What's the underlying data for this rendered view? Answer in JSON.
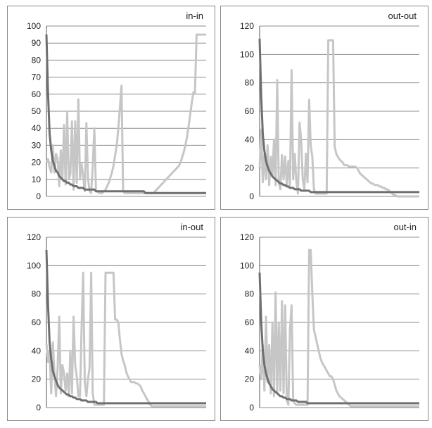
{
  "colors": {
    "dark_series": "#6f6f6f",
    "light_series": "#c6c6c6",
    "grid": "#8c8c8c",
    "axis": "#555555"
  },
  "chart_data": [
    {
      "type": "line",
      "title": "in-in",
      "ylim": [
        0,
        100
      ],
      "yticks": [
        "0",
        "10",
        "20",
        "30",
        "40",
        "50",
        "60",
        "70",
        "80",
        "90",
        "100"
      ],
      "grid": true,
      "x": [
        0,
        1,
        2,
        3,
        4,
        5,
        6,
        7,
        8,
        9,
        10,
        11,
        12,
        13,
        14,
        15,
        16,
        17,
        18,
        19,
        20,
        21,
        22,
        23,
        24,
        25,
        26,
        27,
        28,
        29,
        30,
        31,
        32,
        33,
        34,
        35,
        36,
        37,
        38,
        39,
        40,
        41,
        42,
        43,
        44,
        45,
        46,
        47,
        48,
        49,
        50,
        51,
        52,
        53,
        54,
        55,
        56,
        57,
        58,
        59,
        60,
        61,
        62,
        63,
        64,
        65,
        66,
        67,
        68,
        69,
        70,
        71,
        72,
        73,
        74,
        75,
        76,
        77,
        78,
        79,
        80,
        81,
        82,
        83,
        84,
        85,
        86,
        87,
        88,
        89,
        90,
        91,
        92,
        93,
        94,
        95,
        96,
        97,
        98,
        99,
        100
      ],
      "series": [
        {
          "values": [
            95,
            60,
            37,
            27,
            21,
            18,
            15,
            14,
            12,
            11,
            10,
            9,
            9,
            8,
            8,
            7,
            7,
            6,
            6,
            6,
            5,
            5,
            5,
            5,
            4,
            4,
            4,
            4,
            4,
            4,
            4,
            3,
            3,
            3,
            3,
            3,
            3,
            3,
            3,
            3,
            3,
            3,
            3,
            3,
            3,
            3,
            3,
            3,
            3,
            3,
            3,
            3,
            3,
            3,
            3,
            3,
            3,
            3,
            3,
            3,
            3,
            3,
            2,
            2,
            2,
            2,
            2,
            2,
            2,
            2,
            2,
            2,
            2,
            2,
            2,
            2,
            2,
            2,
            2,
            2,
            2,
            2,
            2,
            2,
            2,
            2,
            2,
            2,
            2,
            2,
            2,
            2,
            2,
            2,
            2,
            2,
            2,
            2,
            2,
            2,
            2
          ]
        },
        {
          "values": [
            20,
            22,
            17,
            14,
            30,
            14,
            25,
            22,
            6,
            27,
            10,
            42,
            7,
            49,
            10,
            13,
            44,
            4,
            44,
            8,
            57,
            10,
            19,
            12,
            3,
            43,
            11,
            3,
            2,
            18,
            40,
            3,
            3,
            2,
            2,
            2,
            3,
            4,
            6,
            8,
            11,
            14,
            18,
            24,
            30,
            40,
            52,
            65,
            3,
            2,
            2,
            2,
            2,
            2,
            2,
            2,
            2,
            2,
            2,
            2,
            2,
            2,
            2,
            2,
            2,
            2,
            2,
            2,
            3,
            4,
            5,
            6,
            7,
            8,
            9,
            10,
            11,
            12,
            13,
            14,
            15,
            16,
            17,
            18,
            20,
            23,
            26,
            30,
            35,
            41,
            48,
            55,
            61,
            61,
            95,
            95,
            95,
            95,
            95,
            95,
            95
          ]
        }
      ]
    },
    {
      "type": "line",
      "title": "out-out",
      "ylim": [
        0,
        120
      ],
      "yticks": [
        "0",
        "20",
        "40",
        "60",
        "80",
        "100",
        "120"
      ],
      "grid": true,
      "x": [
        0,
        1,
        2,
        3,
        4,
        5,
        6,
        7,
        8,
        9,
        10,
        11,
        12,
        13,
        14,
        15,
        16,
        17,
        18,
        19,
        20,
        21,
        22,
        23,
        24,
        25,
        26,
        27,
        28,
        29,
        30,
        31,
        32,
        33,
        34,
        35,
        36,
        37,
        38,
        39,
        40,
        41,
        42,
        43,
        44,
        45,
        46,
        47,
        48,
        49,
        50,
        51,
        52,
        53,
        54,
        55,
        56,
        57,
        58,
        59,
        60,
        61,
        62,
        63,
        64,
        65,
        66,
        67,
        68,
        69,
        70,
        71,
        72,
        73,
        74,
        75,
        76,
        77,
        78,
        79,
        80,
        81,
        82,
        83,
        84,
        85,
        86,
        87,
        88,
        89,
        90,
        91,
        92,
        93,
        94,
        95,
        96,
        97,
        98,
        99,
        100
      ],
      "series": [
        {
          "values": [
            111,
            70,
            44,
            32,
            25,
            21,
            18,
            16,
            14,
            13,
            12,
            11,
            10,
            9,
            9,
            8,
            8,
            7,
            7,
            6,
            6,
            6,
            5,
            5,
            5,
            5,
            4,
            4,
            4,
            4,
            4,
            4,
            3,
            3,
            3,
            3,
            3,
            3,
            3,
            3,
            3,
            3,
            3,
            3,
            3,
            3,
            3,
            3,
            3,
            3,
            3,
            3,
            3,
            3,
            3,
            3,
            3,
            3,
            3,
            3,
            3,
            3,
            3,
            3,
            3,
            3,
            3,
            3,
            3,
            3,
            3,
            3,
            3,
            3,
            3,
            3,
            3,
            3,
            3,
            3,
            3,
            3,
            3,
            3,
            3,
            3,
            3,
            3,
            3,
            3,
            3,
            3,
            3,
            3,
            3,
            3,
            3,
            3,
            3,
            3,
            3
          ]
        },
        {
          "values": [
            20,
            47,
            10,
            30,
            12,
            36,
            8,
            28,
            14,
            40,
            8,
            82,
            10,
            5,
            29,
            12,
            28,
            8,
            25,
            8,
            89,
            12,
            30,
            10,
            2,
            52,
            40,
            12,
            5,
            30,
            10,
            68,
            36,
            28,
            5,
            2,
            2,
            2,
            2,
            2,
            2,
            2,
            2,
            110,
            110,
            110,
            110,
            35,
            30,
            28,
            26,
            25,
            24,
            22,
            22,
            22,
            21,
            21,
            21,
            21,
            21,
            20,
            18,
            16,
            15,
            14,
            13,
            12,
            11,
            10,
            9,
            9,
            8,
            8,
            8,
            7,
            7,
            6,
            6,
            5,
            5,
            4,
            3,
            2,
            1,
            1,
            0,
            0,
            0,
            0,
            0,
            0,
            0,
            0,
            0,
            0,
            0,
            0,
            0,
            0,
            0
          ]
        }
      ]
    },
    {
      "type": "line",
      "title": "in-out",
      "ylim": [
        0,
        120
      ],
      "yticks": [
        "0",
        "20",
        "40",
        "60",
        "80",
        "100",
        "120"
      ],
      "grid": true,
      "x": [
        0,
        1,
        2,
        3,
        4,
        5,
        6,
        7,
        8,
        9,
        10,
        11,
        12,
        13,
        14,
        15,
        16,
        17,
        18,
        19,
        20,
        21,
        22,
        23,
        24,
        25,
        26,
        27,
        28,
        29,
        30,
        31,
        32,
        33,
        34,
        35,
        36,
        37,
        38,
        39,
        40,
        41,
        42,
        43,
        44,
        45,
        46,
        47,
        48,
        49,
        50,
        51,
        52,
        53,
        54,
        55,
        56,
        57,
        58,
        59,
        60,
        61,
        62,
        63,
        64,
        65,
        66,
        67,
        68,
        69,
        70,
        71,
        72,
        73,
        74,
        75,
        76,
        77,
        78,
        79,
        80,
        81,
        82,
        83,
        84,
        85,
        86,
        87,
        88,
        89,
        90,
        91,
        92,
        93,
        94,
        95,
        96,
        97,
        98,
        99,
        100
      ],
      "series": [
        {
          "values": [
            111,
            72,
            46,
            34,
            26,
            22,
            19,
            16,
            14,
            13,
            12,
            11,
            10,
            9,
            9,
            8,
            8,
            7,
            7,
            6,
            6,
            6,
            5,
            5,
            5,
            5,
            4,
            4,
            4,
            4,
            4,
            4,
            3,
            3,
            3,
            3,
            3,
            3,
            3,
            3,
            3,
            3,
            3,
            3,
            3,
            3,
            3,
            3,
            3,
            3,
            3,
            3,
            3,
            3,
            3,
            3,
            3,
            3,
            3,
            3,
            3,
            3,
            3,
            3,
            3,
            3,
            3,
            3,
            3,
            3,
            3,
            3,
            3,
            3,
            3,
            3,
            3,
            3,
            3,
            3,
            3,
            3,
            3,
            3,
            3,
            3,
            3,
            3,
            3,
            3,
            3,
            3,
            3,
            3,
            3,
            3,
            3,
            3,
            3,
            3,
            3
          ]
        },
        {
          "values": [
            45,
            32,
            40,
            10,
            46,
            25,
            8,
            28,
            64,
            10,
            30,
            24,
            12,
            24,
            8,
            40,
            10,
            64,
            30,
            22,
            8,
            8,
            55,
            95,
            18,
            8,
            20,
            28,
            95,
            10,
            2,
            2,
            2,
            2,
            2,
            2,
            2,
            95,
            95,
            95,
            95,
            95,
            95,
            62,
            62,
            60,
            48,
            38,
            33,
            30,
            25,
            22,
            20,
            18,
            18,
            18,
            17,
            17,
            16,
            15,
            12,
            10,
            8,
            6,
            4,
            2,
            1,
            1,
            1,
            1,
            1,
            1,
            1,
            1,
            1,
            1,
            1,
            1,
            1,
            1,
            1,
            1,
            1,
            1,
            1,
            1,
            1,
            1,
            1,
            1,
            1,
            1,
            1,
            1,
            1,
            1,
            1,
            1,
            1,
            1,
            1
          ]
        }
      ]
    },
    {
      "type": "line",
      "title": "out-in",
      "ylim": [
        0,
        120
      ],
      "yticks": [
        "0",
        "20",
        "40",
        "60",
        "80",
        "100",
        "120"
      ],
      "grid": true,
      "x": [
        0,
        1,
        2,
        3,
        4,
        5,
        6,
        7,
        8,
        9,
        10,
        11,
        12,
        13,
        14,
        15,
        16,
        17,
        18,
        19,
        20,
        21,
        22,
        23,
        24,
        25,
        26,
        27,
        28,
        29,
        30,
        31,
        32,
        33,
        34,
        35,
        36,
        37,
        38,
        39,
        40,
        41,
        42,
        43,
        44,
        45,
        46,
        47,
        48,
        49,
        50,
        51,
        52,
        53,
        54,
        55,
        56,
        57,
        58,
        59,
        60,
        61,
        62,
        63,
        64,
        65,
        66,
        67,
        68,
        69,
        70,
        71,
        72,
        73,
        74,
        75,
        76,
        77,
        78,
        79,
        80,
        81,
        82,
        83,
        84,
        85,
        86,
        87,
        88,
        89,
        90,
        91,
        92,
        93,
        94,
        95,
        96,
        97,
        98,
        99,
        100
      ],
      "series": [
        {
          "values": [
            95,
            60,
            40,
            30,
            24,
            20,
            17,
            15,
            13,
            12,
            11,
            10,
            9,
            8,
            8,
            7,
            7,
            6,
            6,
            6,
            5,
            5,
            5,
            5,
            4,
            4,
            4,
            4,
            4,
            4,
            3,
            3,
            3,
            3,
            3,
            3,
            3,
            3,
            3,
            3,
            3,
            3,
            3,
            3,
            3,
            3,
            3,
            3,
            3,
            3,
            3,
            3,
            3,
            3,
            3,
            3,
            3,
            3,
            3,
            3,
            3,
            3,
            3,
            3,
            3,
            3,
            3,
            3,
            3,
            3,
            3,
            3,
            3,
            3,
            3,
            3,
            3,
            3,
            3,
            3,
            3,
            3,
            3,
            3,
            3,
            3,
            3,
            3,
            3,
            3,
            3,
            3,
            3,
            3,
            3,
            3,
            3,
            3,
            3,
            3,
            3
          ]
        },
        {
          "values": [
            30,
            20,
            44,
            12,
            64,
            18,
            44,
            10,
            60,
            8,
            81,
            10,
            60,
            12,
            75,
            10,
            72,
            5,
            2,
            55,
            72,
            5,
            3,
            2,
            2,
            2,
            2,
            2,
            2,
            2,
            2,
            111,
            111,
            80,
            55,
            50,
            45,
            40,
            35,
            32,
            30,
            28,
            26,
            24,
            22,
            22,
            20,
            16,
            12,
            10,
            8,
            7,
            6,
            5,
            4,
            3,
            2,
            1,
            1,
            1,
            1,
            1,
            1,
            1,
            1,
            1,
            1,
            1,
            1,
            1,
            1,
            1,
            1,
            1,
            1,
            1,
            1,
            1,
            1,
            1,
            1,
            1,
            1,
            1,
            1,
            1,
            1,
            1,
            1,
            1,
            1,
            1,
            1,
            1,
            1,
            1,
            1,
            1,
            1,
            1,
            1
          ]
        }
      ]
    }
  ]
}
